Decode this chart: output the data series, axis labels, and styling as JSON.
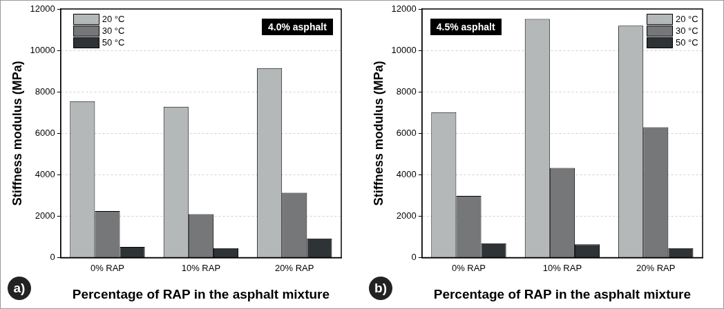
{
  "chart_data": [
    {
      "type": "bar",
      "xlabel": "Percentage of RAP in the asphalt mixture",
      "ylabel": "Stiffness modulus (MPa)",
      "categories": [
        "0% RAP",
        "10% RAP",
        "20% RAP"
      ],
      "series": [
        {
          "name": "20 °C",
          "color": "#b4b8b8",
          "values": [
            7550,
            7280,
            9150
          ]
        },
        {
          "name": "30 °C",
          "color": "#767779",
          "values": [
            2250,
            2100,
            3130
          ]
        },
        {
          "name": "50 °C",
          "color": "#2e3335",
          "values": [
            520,
            460,
            930
          ]
        }
      ],
      "ylim": [
        0,
        12000
      ],
      "yticks": [
        0,
        2000,
        4000,
        6000,
        8000,
        10000,
        12000
      ],
      "grid": "y",
      "legend": "top left",
      "annotations": [
        "a)",
        "4.0% asphalt"
      ]
    },
    {
      "type": "bar",
      "xlabel": "Percentage of RAP in the asphalt mixture",
      "ylabel": "Stiffness modulus (MPa)",
      "categories": [
        "0% RAP",
        "10% RAP",
        "20% RAP"
      ],
      "series": [
        {
          "name": "20 °C",
          "color": "#b4b8b8",
          "values": [
            7020,
            11520,
            11190
          ]
        },
        {
          "name": "30 °C",
          "color": "#767779",
          "values": [
            2980,
            4330,
            6290
          ]
        },
        {
          "name": "50 °C",
          "color": "#2e3335",
          "values": [
            690,
            640,
            460
          ]
        }
      ],
      "ylim": [
        0,
        12000
      ],
      "yticks": [
        0,
        2000,
        4000,
        6000,
        8000,
        10000,
        12000
      ],
      "grid": "y",
      "legend": "top right",
      "annotations": [
        "b)",
        "4.5% asphalt"
      ]
    }
  ]
}
